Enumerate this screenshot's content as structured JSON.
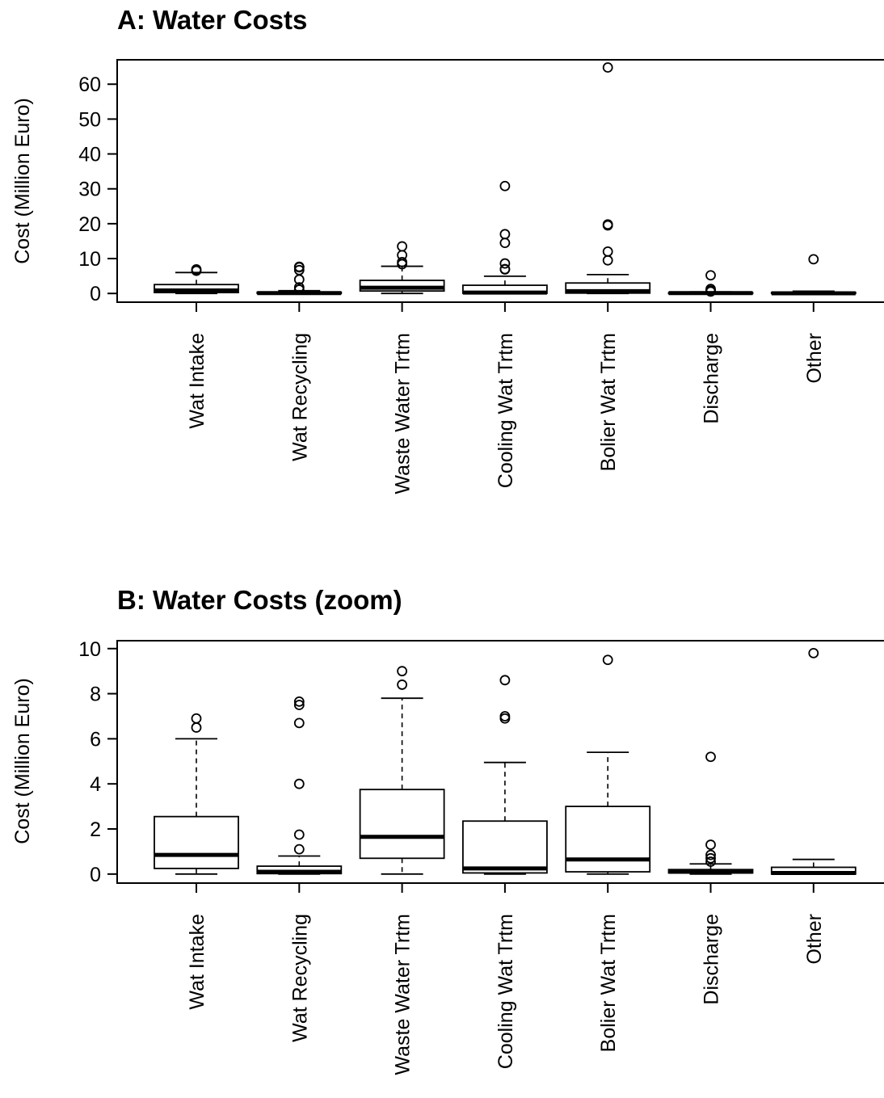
{
  "chart_data": [
    {
      "type": "boxplot",
      "title": "A: Water Costs",
      "ylabel": "Cost (Million Euro)",
      "xlabel": "",
      "ylim": [
        -2.5,
        67
      ],
      "yticks": [
        0,
        10,
        20,
        30,
        40,
        50,
        60
      ],
      "grid": false,
      "categories": [
        "Wat Intake",
        "Wat Recycling",
        "Waste Water Trtm",
        "Cooling Wat Trtm",
        "Bolier Wat Trtm",
        "Discharge",
        "Other"
      ],
      "boxes": [
        {
          "whisker_low": 0.0,
          "q1": 0.25,
          "median": 0.85,
          "q3": 2.55,
          "whisker_high": 6.0,
          "outliers": [
            6.5,
            6.9
          ]
        },
        {
          "whisker_low": 0.0,
          "q1": 0.02,
          "median": 0.1,
          "q3": 0.35,
          "whisker_high": 0.8,
          "outliers": [
            1.1,
            1.75,
            4.0,
            6.7,
            7.5,
            7.65
          ]
        },
        {
          "whisker_low": 0.0,
          "q1": 0.7,
          "median": 1.65,
          "q3": 3.75,
          "whisker_high": 7.8,
          "outliers": [
            8.4,
            9.0,
            11.0,
            13.5
          ]
        },
        {
          "whisker_low": 0.0,
          "q1": 0.05,
          "median": 0.25,
          "q3": 2.35,
          "whisker_high": 4.95,
          "outliers": [
            6.9,
            7.0,
            8.6,
            14.5,
            17.0,
            30.8
          ]
        },
        {
          "whisker_low": 0.0,
          "q1": 0.1,
          "median": 0.65,
          "q3": 3.0,
          "whisker_high": 5.4,
          "outliers": [
            9.5,
            12.0,
            19.5,
            19.8,
            64.8
          ]
        },
        {
          "whisker_low": 0.0,
          "q1": 0.05,
          "median": 0.1,
          "q3": 0.2,
          "whisker_high": 0.45,
          "outliers": [
            0.55,
            0.7,
            0.85,
            1.3,
            5.2
          ]
        },
        {
          "whisker_low": 0.0,
          "q1": 0.0,
          "median": 0.05,
          "q3": 0.3,
          "whisker_high": 0.65,
          "outliers": [
            9.8
          ]
        }
      ]
    },
    {
      "type": "boxplot",
      "title": "B: Water Costs (zoom)",
      "ylabel": "Cost (Million Euro)",
      "xlabel": "",
      "ylim": [
        -0.4,
        10.35
      ],
      "yticks": [
        0,
        2,
        4,
        6,
        8,
        10
      ],
      "grid": false,
      "categories": [
        "Wat Intake",
        "Wat Recycling",
        "Waste Water Trtm",
        "Cooling Wat Trtm",
        "Bolier Wat Trtm",
        "Discharge",
        "Other"
      ],
      "boxes": [
        {
          "whisker_low": 0.0,
          "q1": 0.25,
          "median": 0.85,
          "q3": 2.55,
          "whisker_high": 6.0,
          "outliers": [
            6.5,
            6.9
          ]
        },
        {
          "whisker_low": 0.0,
          "q1": 0.02,
          "median": 0.1,
          "q3": 0.35,
          "whisker_high": 0.8,
          "outliers": [
            1.1,
            1.75,
            4.0,
            6.7,
            7.5,
            7.65
          ]
        },
        {
          "whisker_low": 0.0,
          "q1": 0.7,
          "median": 1.65,
          "q3": 3.75,
          "whisker_high": 7.8,
          "outliers": [
            8.4,
            9.0
          ]
        },
        {
          "whisker_low": 0.0,
          "q1": 0.05,
          "median": 0.25,
          "q3": 2.35,
          "whisker_high": 4.95,
          "outliers": [
            6.9,
            7.0,
            8.6
          ]
        },
        {
          "whisker_low": 0.0,
          "q1": 0.1,
          "median": 0.65,
          "q3": 3.0,
          "whisker_high": 5.4,
          "outliers": [
            9.5
          ]
        },
        {
          "whisker_low": 0.0,
          "q1": 0.05,
          "median": 0.1,
          "q3": 0.2,
          "whisker_high": 0.45,
          "outliers": [
            0.55,
            0.7,
            0.85,
            1.3,
            5.2
          ]
        },
        {
          "whisker_low": 0.0,
          "q1": 0.0,
          "median": 0.05,
          "q3": 0.3,
          "whisker_high": 0.65,
          "outliers": [
            9.8
          ]
        }
      ]
    }
  ]
}
